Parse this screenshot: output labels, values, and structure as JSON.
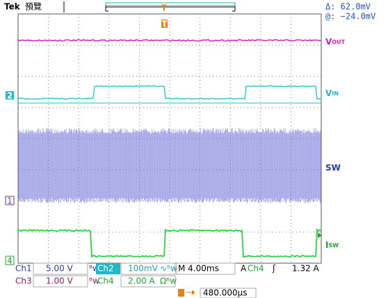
{
  "header": {
    "brand": "Tek",
    "mode": "預覽",
    "cursor_delta": "Δ:  62.0mV",
    "cursor_at": "@: −24.0mV"
  },
  "traces": [
    {
      "name": "V",
      "sub": "OUT"
    },
    {
      "name": "V",
      "sub": "IN"
    },
    {
      "name": "SW",
      "sub": ""
    },
    {
      "name": "I",
      "sub": "SW"
    }
  ],
  "ground_markers": [
    "2",
    "1",
    "4"
  ],
  "readout": {
    "row1": [
      {
        "ch": "Ch1",
        "scale": "5.00 V",
        "bw": "ᴮw"
      },
      {
        "ch": "Ch2",
        "scale": "100mV",
        "bw": "∿ᴮw"
      }
    ],
    "row2": [
      {
        "ch": "Ch3",
        "scale": "1.00 V",
        "bw": "ᴮw"
      },
      {
        "ch": "Ch4",
        "scale": "2.00 A",
        "bw": "Ωᴮw"
      }
    ],
    "timebase": "M 4.00ms",
    "trigger_mode": "A",
    "trigger_source": "Ch4",
    "trigger_slope": "ʃ",
    "trigger_level": "1.32 A",
    "trigger_offset": "480.000µs"
  }
}
